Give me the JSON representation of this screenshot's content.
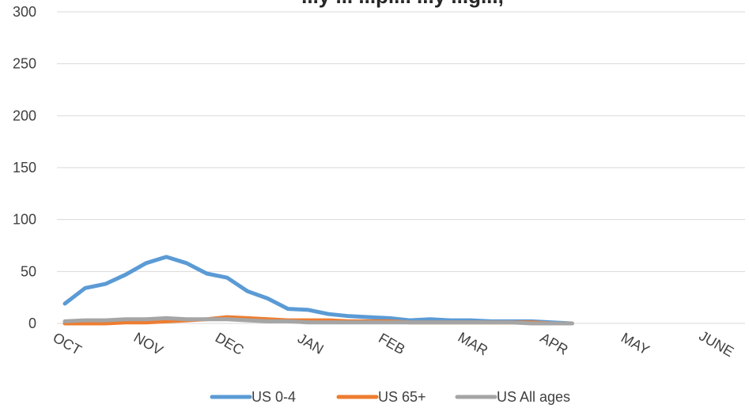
{
  "chart_data": {
    "type": "line",
    "title": "...y ... ...pi... ...y ...g...,",
    "categories": [
      "OCT",
      "NOV",
      "DEC",
      "JAN",
      "FEB",
      "MAR",
      "APR",
      "MAY",
      "JUNE"
    ],
    "ylim": [
      0,
      300
    ],
    "yticks": [
      0,
      50,
      100,
      150,
      200,
      250,
      300
    ],
    "grid": true,
    "legend_position": "bottom",
    "series": [
      {
        "name": "US 0-4",
        "color": "#5b9bd5",
        "x": [
          0.0,
          0.25,
          0.5,
          0.75,
          1.0,
          1.25,
          1.5,
          1.75,
          2.0,
          2.25,
          2.5,
          2.75,
          3.0,
          3.25,
          3.5,
          3.75,
          4.0,
          4.25,
          4.5,
          4.75,
          5.0,
          5.25,
          5.5,
          5.75,
          6.0,
          6.25
        ],
        "y": [
          19,
          34,
          38,
          47,
          58,
          64,
          58,
          48,
          44,
          31,
          24,
          14,
          13,
          9,
          7,
          6,
          5,
          3,
          4,
          3,
          3,
          2,
          2,
          2,
          1,
          0
        ]
      },
      {
        "name": "US 65+",
        "color": "#ed7d31",
        "x": [
          0.0,
          0.25,
          0.5,
          0.75,
          1.0,
          1.25,
          1.5,
          1.75,
          2.0,
          2.25,
          2.5,
          2.75,
          3.0,
          3.25,
          3.5,
          3.75,
          4.0,
          4.25,
          4.5,
          4.75,
          5.0,
          5.25,
          5.5,
          5.75,
          6.0,
          6.25
        ],
        "y": [
          0,
          0,
          0,
          1,
          1,
          2,
          3,
          4,
          6,
          5,
          4,
          3,
          3,
          3,
          2,
          2,
          2,
          1,
          1,
          1,
          1,
          1,
          1,
          1,
          0,
          0
        ]
      },
      {
        "name": "US All ages",
        "color": "#a5a5a5",
        "x": [
          0.0,
          0.25,
          0.5,
          0.75,
          1.0,
          1.25,
          1.5,
          1.75,
          2.0,
          2.25,
          2.5,
          2.75,
          3.0,
          3.25,
          3.5,
          3.75,
          4.0,
          4.25,
          4.5,
          4.75,
          5.0,
          5.25,
          5.5,
          5.75,
          6.0,
          6.25
        ],
        "y": [
          2,
          3,
          3,
          4,
          4,
          5,
          4,
          4,
          4,
          3,
          2,
          2,
          1,
          1,
          1,
          1,
          1,
          1,
          1,
          1,
          1,
          1,
          1,
          0,
          0,
          0
        ]
      }
    ]
  }
}
